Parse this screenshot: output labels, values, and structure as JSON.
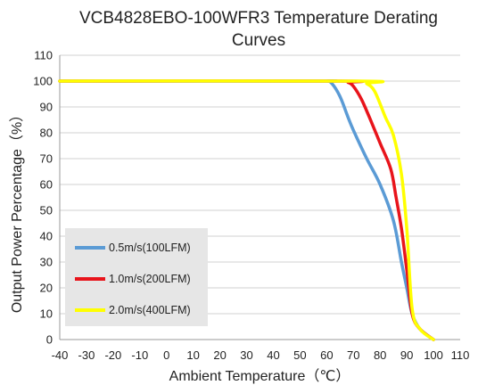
{
  "chart_data": {
    "type": "line",
    "title_line1": "VCB4828EBO-100WFR3 Temperature Derating",
    "title_line2": "Curves",
    "xlabel": "Ambient Temperature（℃）",
    "ylabel": "Output Power Percentage（%）",
    "xlim": [
      -40,
      110
    ],
    "ylim": [
      0,
      110
    ],
    "xticks": [
      -40,
      -30,
      -20,
      -10,
      0,
      10,
      20,
      30,
      40,
      50,
      60,
      70,
      80,
      90,
      100,
      110
    ],
    "yticks": [
      0,
      10,
      20,
      30,
      40,
      50,
      60,
      70,
      80,
      90,
      100,
      110
    ],
    "grid": "horizontal",
    "legend_position": "bottom-left",
    "series": [
      {
        "name": "0.5m/s(100LFM)",
        "color": "#5b9bd5",
        "x": [
          -40,
          55,
          60,
          62,
          65,
          68,
          70,
          75,
          80,
          85,
          88,
          90,
          92,
          95,
          100
        ],
        "y": [
          100,
          100,
          100,
          99,
          94,
          86,
          81,
          70,
          60,
          46,
          30,
          20,
          10,
          4,
          0
        ]
      },
      {
        "name": "1.0m/s(200LFM)",
        "color": "#e8141b",
        "x": [
          -40,
          65,
          68,
          70,
          73,
          76,
          80,
          84,
          86,
          88,
          90,
          92,
          95,
          100
        ],
        "y": [
          100,
          100,
          99.5,
          98,
          93,
          86,
          76,
          66,
          55,
          43,
          27,
          10,
          4,
          0
        ]
      },
      {
        "name": "2.0m/s(400LFM)",
        "color": "#ffff00",
        "x": [
          -40,
          72,
          75,
          78,
          82,
          85,
          88,
          90,
          92,
          95,
          100
        ],
        "y": [
          100,
          100,
          99,
          96,
          86,
          79,
          64,
          43,
          12,
          4,
          0
        ]
      }
    ]
  },
  "colors": {
    "axis": "#9a9a9a",
    "grid": "#d0d0d0",
    "legend_bg": "#e6e6e6"
  }
}
